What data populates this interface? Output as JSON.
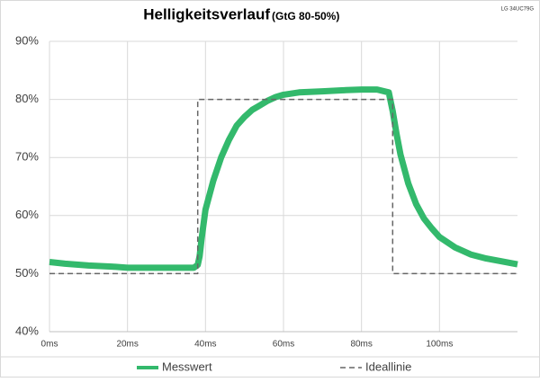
{
  "chart_data": {
    "type": "line",
    "title": "Helligkeitsverlauf",
    "subtitle": "(GtG 80-50%)",
    "annotation": "LG 34UC79G",
    "xlim": [
      0,
      120
    ],
    "xticks": [
      {
        "value": 0,
        "label": "0ms"
      },
      {
        "value": 20,
        "label": "20ms"
      },
      {
        "value": 40,
        "label": "40ms"
      },
      {
        "value": 60,
        "label": "60ms"
      },
      {
        "value": 80,
        "label": "80ms"
      },
      {
        "value": 100,
        "label": "100ms"
      }
    ],
    "ylim": [
      40,
      90
    ],
    "yticks": [
      {
        "value": 40,
        "label": "40%"
      },
      {
        "value": 50,
        "label": "50%"
      },
      {
        "value": 60,
        "label": "60%"
      },
      {
        "value": 70,
        "label": "70%"
      },
      {
        "value": 80,
        "label": "80%"
      },
      {
        "value": 90,
        "label": "90%"
      }
    ],
    "grid": true,
    "legend": "bottom",
    "series": [
      {
        "name": "Messwert",
        "color": "#33b96c",
        "dash": false,
        "x": [
          0,
          4,
          10,
          16,
          20,
          26,
          32,
          37,
          38,
          38.5,
          39,
          40,
          42,
          44,
          46,
          48,
          50,
          52,
          54,
          56,
          58,
          60,
          64,
          70,
          76,
          80,
          84,
          87,
          88,
          89,
          90,
          92,
          94,
          96,
          98,
          100,
          104,
          108,
          112,
          116,
          120
        ],
        "values": [
          52,
          51.7,
          51.4,
          51.2,
          51,
          51,
          51,
          51,
          51.5,
          53,
          56,
          61,
          66,
          70,
          73,
          75.5,
          77,
          78.2,
          79,
          79.8,
          80.4,
          80.8,
          81.2,
          81.4,
          81.6,
          81.7,
          81.7,
          81.2,
          78,
          74,
          70.5,
          65.5,
          62,
          59.5,
          57.8,
          56.3,
          54.5,
          53.3,
          52.6,
          52.1,
          51.6
        ]
      },
      {
        "name": "Ideallinie",
        "color": "#666666",
        "dash": true,
        "x": [
          0,
          38,
          38,
          88,
          88,
          120
        ],
        "values": [
          50,
          50,
          80,
          80,
          50,
          50
        ]
      }
    ]
  }
}
